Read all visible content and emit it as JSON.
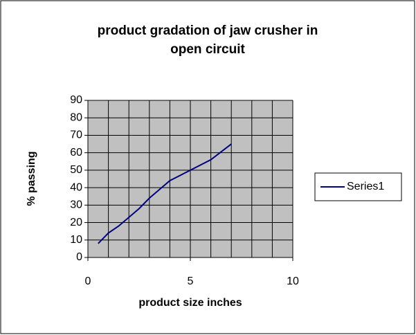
{
  "chart_data": {
    "type": "line",
    "title": [
      "product gradation of jaw crusher in",
      "open circuit"
    ],
    "x_label": "product size inches",
    "y_label": "% passing",
    "x": [
      0.5,
      1,
      1.5,
      2,
      2.5,
      3,
      4,
      5,
      6,
      7
    ],
    "series": [
      {
        "name": "Series1",
        "color": "#000080",
        "values": [
          8,
          14,
          18,
          23,
          28,
          34,
          44,
          50,
          56,
          65
        ]
      }
    ],
    "xlim": [
      0,
      10
    ],
    "xticks": [
      0,
      5,
      10
    ],
    "x_gridlines": [
      0,
      1,
      2,
      3,
      4,
      5,
      6,
      7,
      8,
      9,
      10
    ],
    "ylim": [
      0,
      90
    ],
    "yticks": [
      0,
      10,
      20,
      30,
      40,
      50,
      60,
      70,
      80,
      90
    ],
    "grid": true,
    "plot_background": "#c0c0c0",
    "legend": "right"
  }
}
